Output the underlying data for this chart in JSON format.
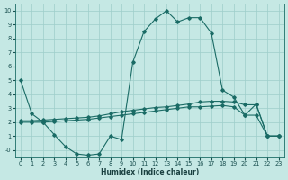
{
  "background_color": "#c5e8e4",
  "grid_color": "#9ececa",
  "line_color": "#1a6b65",
  "xlabel": "Humidex (Indice chaleur)",
  "xlim": [
    -0.5,
    23.5
  ],
  "ylim": [
    -0.55,
    10.5
  ],
  "xticks": [
    0,
    1,
    2,
    3,
    4,
    5,
    6,
    7,
    8,
    9,
    10,
    11,
    12,
    13,
    14,
    15,
    16,
    17,
    18,
    19,
    20,
    21,
    22,
    23
  ],
  "yticks": [
    0,
    1,
    2,
    3,
    4,
    5,
    6,
    7,
    8,
    9,
    10
  ],
  "ytick_labels": [
    "",
    "1",
    "2",
    "3",
    "4",
    "5",
    "6",
    "7",
    "8",
    "9",
    "10"
  ],
  "line1_x": [
    0,
    1,
    2,
    3,
    4,
    5,
    6,
    7,
    8,
    9,
    10,
    11,
    12,
    13,
    14,
    15,
    16,
    17,
    18,
    19,
    20,
    21,
    22,
    23
  ],
  "line1_y": [
    5.0,
    2.6,
    2.0,
    1.1,
    0.25,
    -0.28,
    -0.37,
    -0.28,
    1.0,
    0.75,
    6.3,
    8.5,
    9.4,
    10.0,
    9.2,
    9.5,
    9.5,
    8.4,
    4.3,
    3.8,
    2.5,
    3.3,
    1.0,
    1.0
  ],
  "line2_x": [
    0,
    1,
    2,
    3,
    4,
    5,
    6,
    7,
    8,
    9,
    10,
    11,
    12,
    13,
    14,
    15,
    16,
    17,
    18,
    19,
    20,
    21,
    22,
    23
  ],
  "line2_y": [
    2.1,
    2.1,
    2.15,
    2.2,
    2.25,
    2.3,
    2.35,
    2.45,
    2.6,
    2.75,
    2.85,
    2.95,
    3.05,
    3.1,
    3.2,
    3.3,
    3.45,
    3.5,
    3.5,
    3.45,
    3.25,
    3.25,
    1.0,
    1.0
  ],
  "line3_x": [
    0,
    1,
    2,
    3,
    4,
    5,
    6,
    7,
    8,
    9,
    10,
    11,
    12,
    13,
    14,
    15,
    16,
    17,
    18,
    19,
    20,
    21,
    22,
    23
  ],
  "line3_y": [
    2.0,
    2.0,
    2.0,
    2.05,
    2.1,
    2.15,
    2.2,
    2.3,
    2.4,
    2.5,
    2.6,
    2.7,
    2.8,
    2.9,
    3.0,
    3.1,
    3.1,
    3.15,
    3.2,
    3.1,
    2.5,
    2.5,
    1.0,
    1.0
  ],
  "xlabel_fontsize": 5.5,
  "tick_fontsize": 4.8,
  "linewidth": 0.8,
  "markersize": 1.8
}
